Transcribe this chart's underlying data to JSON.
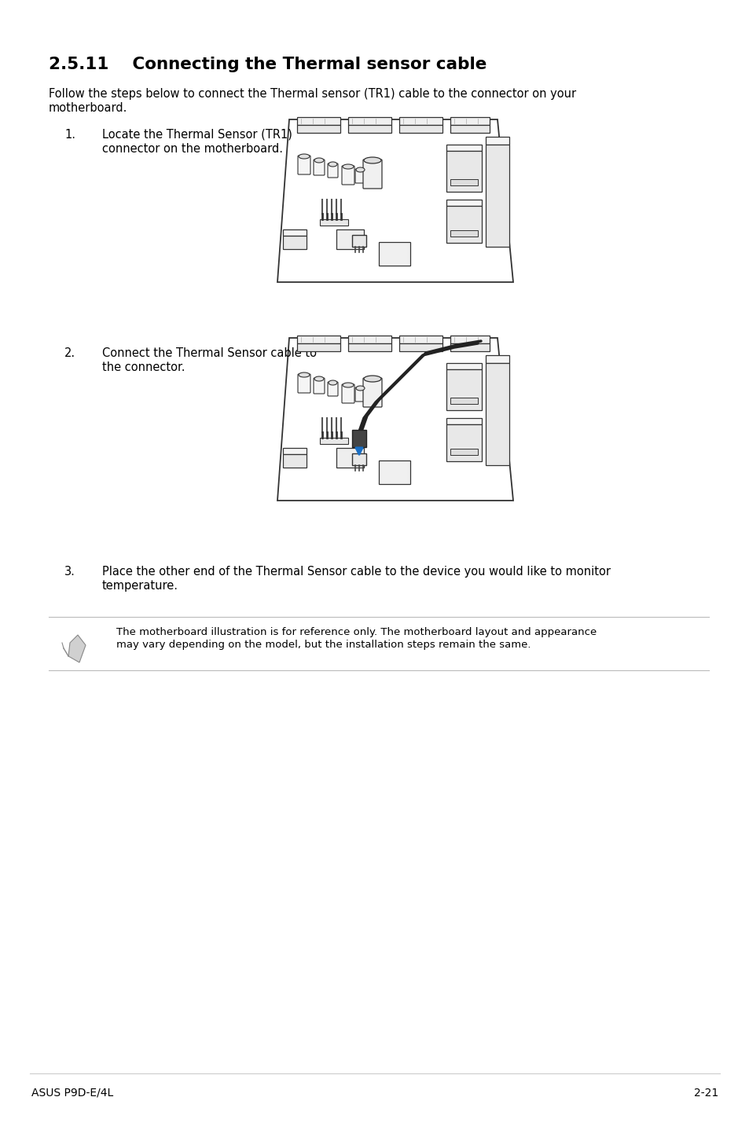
{
  "title": "2.5.11    Connecting the Thermal sensor cable",
  "intro_text_1": "Follow the steps below to connect the Thermal sensor (TR1) cable to the connector on your",
  "intro_text_2": "motherboard.",
  "step1_num": "1.",
  "step1_line1": "Locate the Thermal Sensor (TR1)",
  "step1_line2": "connector on the motherboard.",
  "step2_num": "2.",
  "step2_line1": "Connect the Thermal Sensor cable to",
  "step2_line2": "the connector.",
  "step3_num": "3.",
  "step3_line1": "Place the other end of the Thermal Sensor cable to the device you would like to monitor",
  "step3_line2": "temperature.",
  "note_line1": "The motherboard illustration is for reference only. The motherboard layout and appearance",
  "note_line2": "may vary depending on the model, but the installation steps remain the same.",
  "footer_left": "ASUS P9D-E/4L",
  "footer_right": "2-21",
  "bg_color": "#ffffff",
  "text_color": "#000000",
  "gray_line": "#bbbbbb",
  "blue_arrow": "#1a6fc4"
}
